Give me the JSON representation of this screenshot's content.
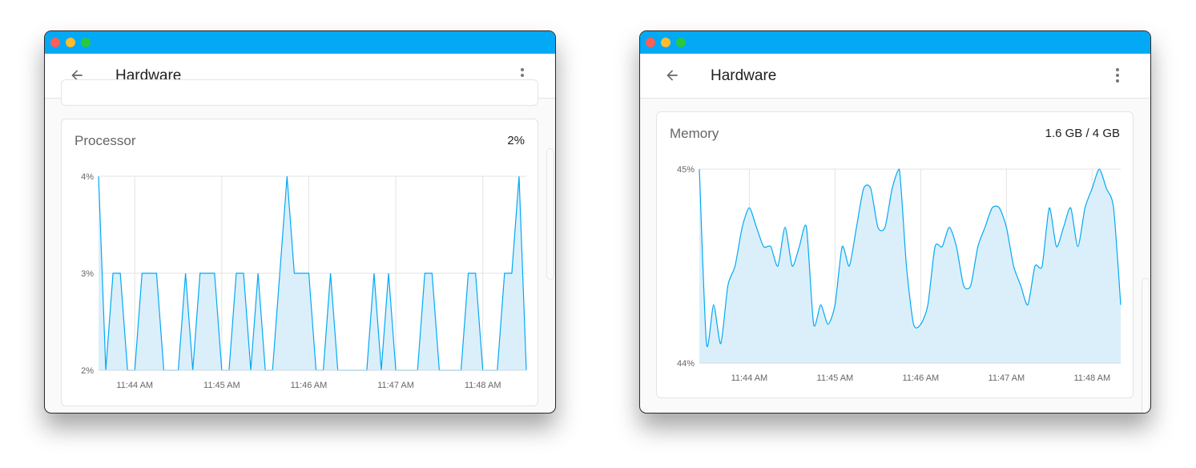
{
  "windows": [
    {
      "title": "Hardware",
      "card": {
        "title": "Processor",
        "value": "2%"
      }
    },
    {
      "title": "Hardware",
      "card": {
        "title": "Memory",
        "value": "1.6 GB / 4 GB"
      }
    }
  ],
  "icons": {
    "back": "arrow-left-icon",
    "menu": "more-vert-icon"
  },
  "colors": {
    "titlebar": "#03A9F4",
    "series_line": "#03A9F4",
    "series_fill": "#D9EEFB"
  },
  "chart_data": [
    {
      "type": "area",
      "title": "Processor",
      "xlim": [
        "11:43:35",
        "11:48:30"
      ],
      "ylim": [
        2,
        4
      ],
      "y_ticks": [
        {
          "value": 4,
          "label": "4%"
        },
        {
          "value": 3,
          "label": "3%"
        },
        {
          "value": 2,
          "label": "2%"
        }
      ],
      "x_ticks": [
        {
          "time": "11:44:00",
          "label": "11:44 AM"
        },
        {
          "time": "11:45:00",
          "label": "11:45 AM"
        },
        {
          "time": "11:46:00",
          "label": "11:46 AM"
        },
        {
          "time": "11:47:00",
          "label": "11:47 AM"
        },
        {
          "time": "11:48:00",
          "label": "11:48 AM"
        }
      ],
      "grid": true,
      "smooth": false,
      "values": [
        4,
        2,
        3,
        3,
        2,
        2,
        3,
        3,
        3,
        2,
        2,
        2,
        3,
        2,
        3,
        3,
        3,
        2,
        2,
        3,
        3,
        2,
        3,
        2,
        2,
        3,
        4,
        3,
        3,
        3,
        2,
        2,
        3,
        2,
        2,
        2,
        2,
        2,
        3,
        2,
        3,
        2,
        2,
        2,
        2,
        3,
        3,
        2,
        2,
        2,
        2,
        3,
        3,
        2,
        2,
        2,
        3,
        3,
        4,
        2
      ]
    },
    {
      "type": "area",
      "title": "Memory",
      "xlim": [
        "11:43:25",
        "11:48:20"
      ],
      "ylim": [
        44,
        45
      ],
      "y_ticks": [
        {
          "value": 45,
          "label": "45%"
        },
        {
          "value": 44,
          "label": "44%"
        }
      ],
      "x_ticks": [
        {
          "time": "11:44:00",
          "label": "11:44 AM"
        },
        {
          "time": "11:45:00",
          "label": "11:45 AM"
        },
        {
          "time": "11:46:00",
          "label": "11:46 AM"
        },
        {
          "time": "11:47:00",
          "label": "11:47 AM"
        },
        {
          "time": "11:48:00",
          "label": "11:48 AM"
        }
      ],
      "grid": true,
      "smooth": true,
      "values": [
        45.0,
        44.1,
        44.3,
        44.1,
        44.4,
        44.5,
        44.7,
        44.8,
        44.7,
        44.6,
        44.6,
        44.5,
        44.7,
        44.5,
        44.6,
        44.7,
        44.2,
        44.3,
        44.2,
        44.3,
        44.6,
        44.5,
        44.7,
        44.9,
        44.9,
        44.7,
        44.7,
        44.9,
        45.0,
        44.5,
        44.2,
        44.2,
        44.3,
        44.6,
        44.6,
        44.7,
        44.6,
        44.4,
        44.4,
        44.6,
        44.7,
        44.8,
        44.8,
        44.7,
        44.5,
        44.4,
        44.3,
        44.5,
        44.5,
        44.8,
        44.6,
        44.7,
        44.8,
        44.6,
        44.8,
        44.9,
        45.0,
        44.9,
        44.8,
        44.3
      ]
    }
  ]
}
